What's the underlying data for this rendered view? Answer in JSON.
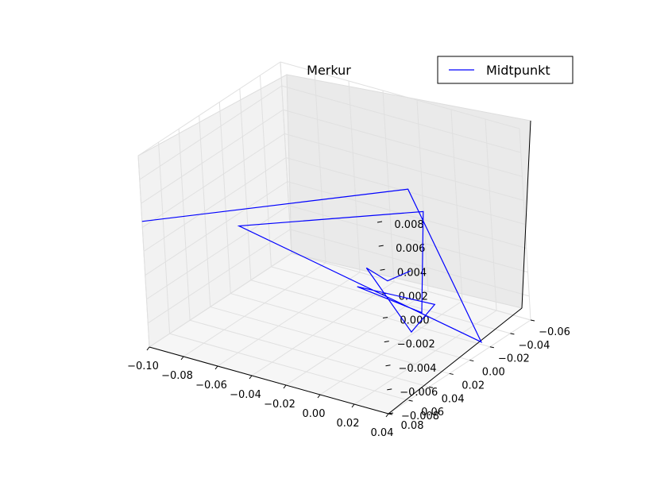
{
  "chart_data": {
    "type": "line",
    "projection": "3d",
    "title": "Merkur",
    "legend": {
      "position": "top-right",
      "entries": [
        "Midtpunkt"
      ]
    },
    "grid": true,
    "xlim": [
      -0.1,
      0.04
    ],
    "ylim": [
      -0.06,
      0.08
    ],
    "zlim": [
      -0.008,
      0.008
    ],
    "x_ticks": [
      "−0.10",
      "−0.08",
      "−0.06",
      "−0.04",
      "−0.02",
      "0.00",
      "0.02",
      "0.04"
    ],
    "y_ticks": [
      "−0.06",
      "−0.04",
      "−0.02",
      "0.00",
      "0.02",
      "0.04",
      "0.06",
      "0.08"
    ],
    "z_ticks": [
      "−0.008",
      "−0.006",
      "−0.004",
      "−0.002",
      "0.000",
      "0.002",
      "0.004",
      "0.006",
      "0.008"
    ],
    "series": [
      {
        "name": "Midtpunkt",
        "color": "#0000ff",
        "points": [
          {
            "x": -0.1,
            "y": 0.08,
            "z": 0.0025
          },
          {
            "x": 0.028,
            "y": 0.03,
            "z": 0.0075
          },
          {
            "x": 0.035,
            "y": -0.02,
            "z": -0.0078
          },
          {
            "x": -0.055,
            "y": 0.06,
            "z": 0.0028
          },
          {
            "x": 0.025,
            "y": 0.012,
            "z": 0.0045
          },
          {
            "x": 0.01,
            "y": -0.005,
            "z": -0.0055
          },
          {
            "x": -0.015,
            "y": 0.015,
            "z": -0.0032
          },
          {
            "x": 0.018,
            "y": -0.005,
            "z": -0.0045
          },
          {
            "x": 0.0,
            "y": -0.01,
            "z": -0.0078
          },
          {
            "x": -0.012,
            "y": 0.01,
            "z": -0.0018
          },
          {
            "x": -0.003,
            "y": 0.005,
            "z": -0.0028
          },
          {
            "x": 0.008,
            "y": 0.0,
            "z": -0.0018
          }
        ]
      }
    ]
  }
}
